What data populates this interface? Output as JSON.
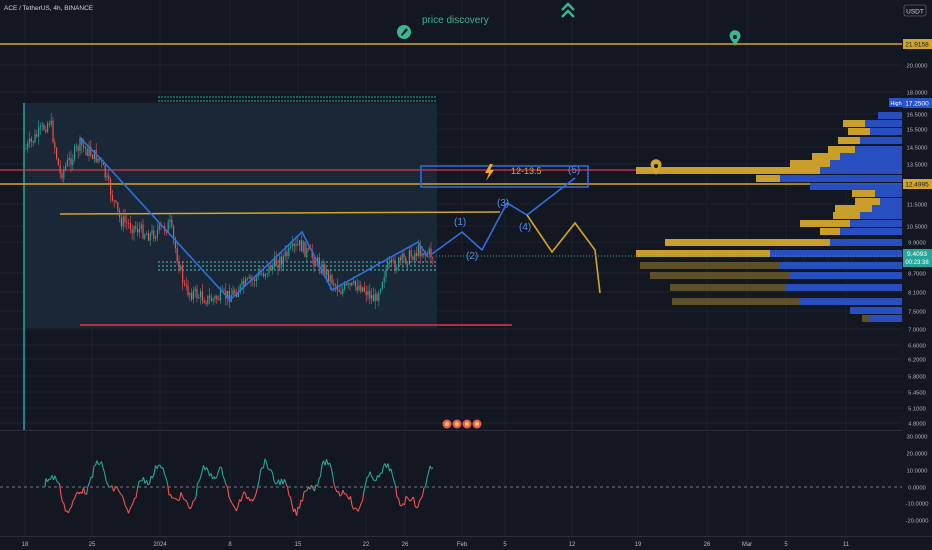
{
  "header": {
    "symbol_label": "ACE / TetherUS, 4h, BINANCE"
  },
  "annotations": {
    "price_discovery": "price discovery",
    "target_zone": "12-13.5",
    "waves": [
      "(1)",
      "(2)",
      "(3)",
      "(4)",
      "(5)"
    ]
  },
  "price_axis": {
    "currency": "USDT",
    "ticks": [
      "20.0000",
      "18.0000",
      "16.5000",
      "15.5000",
      "14.5000",
      "13.5000",
      "11.5000",
      "10.5000",
      "9.9000",
      "8.7000",
      "8.1000",
      "7.5000",
      "7.0000",
      "6.6000",
      "6.2000",
      "5.8000",
      "5.4500",
      "5.1000",
      "4.8000"
    ],
    "badges": [
      {
        "text": "21.9158",
        "kind": "yellow"
      },
      {
        "text": "High",
        "kind": "high-label"
      },
      {
        "text": "17.2500",
        "kind": "high"
      },
      {
        "text": "12.4995",
        "kind": "yellow"
      },
      {
        "text": "9.4093",
        "kind": "current"
      },
      {
        "text": "00:23:38",
        "kind": "current-timer"
      }
    ]
  },
  "oscillator_axis": {
    "ticks": [
      "30.0000",
      "20.0000",
      "10.0000",
      "0.0000",
      "-10.0000",
      "-20.0000"
    ]
  },
  "time_axis": {
    "labels": [
      "18",
      "25",
      "2024",
      "8",
      "15",
      "22",
      "26",
      "Feb",
      "5",
      "12",
      "19",
      "26",
      "Mar",
      "5",
      "11"
    ]
  },
  "colors": {
    "background": "#131722",
    "gold": "#d4a52b",
    "blue_vp": "#2852c8",
    "red_line": "#e0344d",
    "bull": "#26a69a",
    "bear": "#ef5350",
    "wave_blue": "#2f6fe0",
    "teal_icon": "#3bb68f"
  },
  "icons": [
    "rocket-icon",
    "double-chevron-up-icon",
    "map-pin-icon",
    "lightning-icon"
  ]
}
